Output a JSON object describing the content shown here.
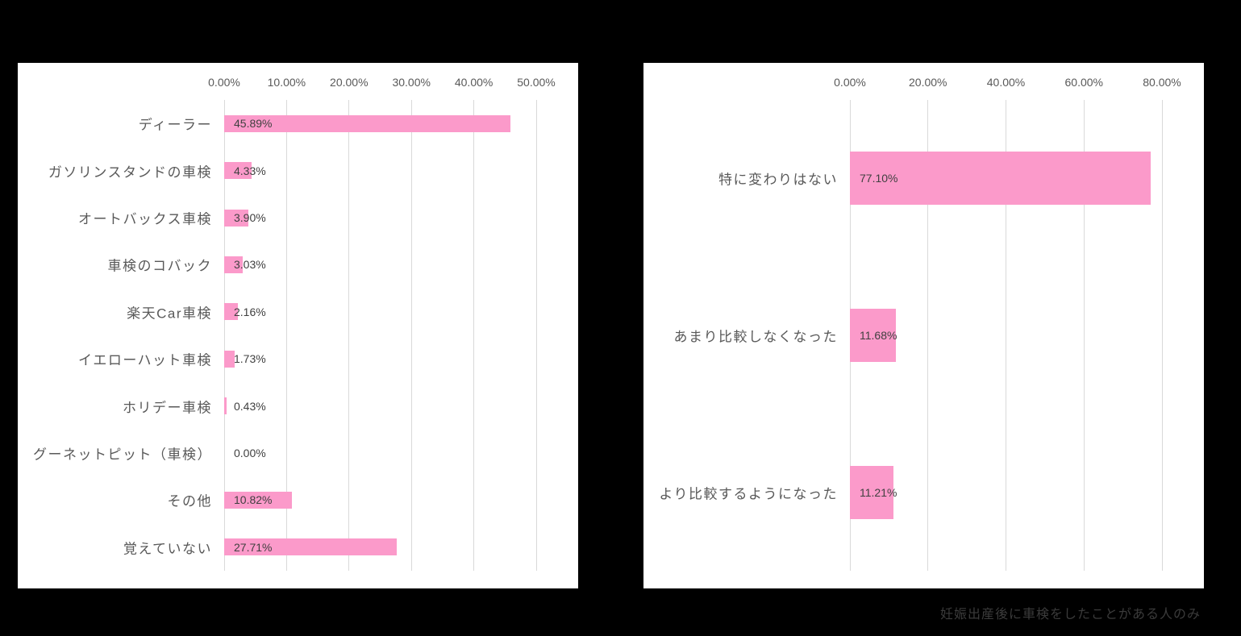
{
  "page": {
    "background_color": "#000000",
    "panel_color": "#ffffff",
    "footnote": "妊娠出産後に車検をしたことがある人のみ"
  },
  "colors": {
    "bar_pink": "#FB9ACA",
    "gridline": "#d9d9d9",
    "tick_text": "#595959",
    "category_text": "#595959",
    "value_text": "#404040",
    "footnote_text": "#3b3b3b"
  },
  "chart_data": [
    {
      "type": "bar",
      "orientation": "horizontal",
      "title": "",
      "xlabel": "",
      "ylabel": "",
      "categories": [
        "ディーラー",
        "ガソリンスタンドの車検",
        "オートバックス車検",
        "車検のコバック",
        "楽天Car車検",
        "イエローハット車検",
        "ホリデー車検",
        "グーネットピット（車検）",
        "その他",
        "覚えていない"
      ],
      "values": [
        45.89,
        4.33,
        3.9,
        3.03,
        2.16,
        1.73,
        0.43,
        0.0,
        10.82,
        27.71
      ],
      "value_labels": [
        "45.89%",
        "4.33%",
        "3.90%",
        "3.03%",
        "2.16%",
        "1.73%",
        "0.43%",
        "0.00%",
        "10.82%",
        "27.71%"
      ],
      "x_ticks": [
        "0.00%",
        "10.00%",
        "20.00%",
        "30.00%",
        "40.00%",
        "50.00%"
      ],
      "xlim": [
        0,
        50
      ],
      "grid": true,
      "legend": false,
      "bar_color": "#FB9ACA",
      "bar_thickness": 21
    },
    {
      "type": "bar",
      "orientation": "horizontal",
      "title": "",
      "xlabel": "",
      "ylabel": "",
      "categories": [
        "特に変わりはない",
        "あまり比較しなくなった",
        "より比較するようになった"
      ],
      "values": [
        77.1,
        11.68,
        11.21
      ],
      "value_labels": [
        "77.10%",
        "11.68%",
        "11.21%"
      ],
      "x_ticks": [
        "0.00%",
        "20.00%",
        "40.00%",
        "60.00%",
        "80.00%"
      ],
      "xlim": [
        0,
        80
      ],
      "grid": true,
      "legend": false,
      "bar_color": "#FB9ACA",
      "bar_thickness": 66
    }
  ]
}
